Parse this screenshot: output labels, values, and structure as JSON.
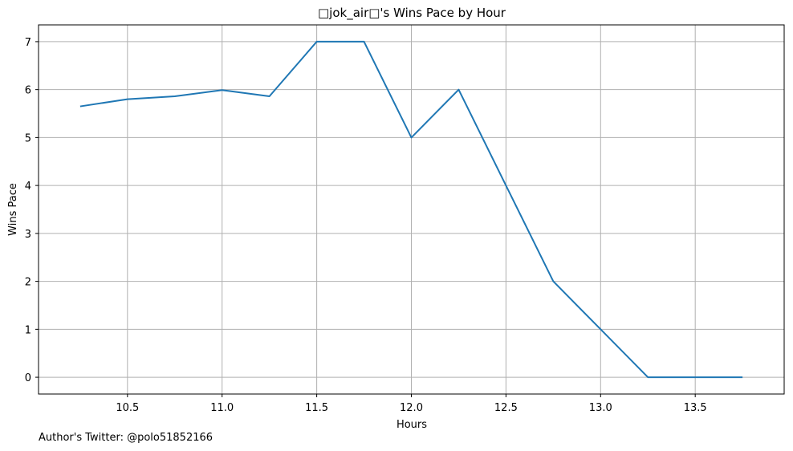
{
  "chart_data": {
    "type": "line",
    "title": "□jok_air□'s Wins Pace by Hour",
    "xlabel": "Hours",
    "ylabel": "Wins Pace",
    "xlim": [
      10.03,
      13.97
    ],
    "ylim": [
      -0.35,
      7.35
    ],
    "xticks": [
      10.5,
      11.0,
      11.5,
      12.0,
      12.5,
      13.0,
      13.5
    ],
    "xtick_labels": [
      "10.5",
      "11.0",
      "11.5",
      "12.0",
      "12.5",
      "13.0",
      "13.5"
    ],
    "yticks": [
      0,
      1,
      2,
      3,
      4,
      5,
      6,
      7
    ],
    "ytick_labels": [
      "0",
      "1",
      "2",
      "3",
      "4",
      "5",
      "6",
      "7"
    ],
    "grid": true,
    "series": [
      {
        "color": "#1f77b4",
        "x": [
          10.25,
          10.5,
          10.75,
          11.0,
          11.25,
          11.5,
          11.75,
          12.0,
          12.25,
          12.5,
          12.75,
          13.0,
          13.25,
          13.5,
          13.75
        ],
        "y": [
          5.65,
          5.8,
          5.86,
          5.99,
          5.86,
          7.0,
          7.0,
          5.0,
          6.0,
          4.0,
          2.0,
          1.0,
          0.0,
          0.0,
          0.0
        ]
      }
    ]
  },
  "footnote": "Author's Twitter: @polo51852166"
}
